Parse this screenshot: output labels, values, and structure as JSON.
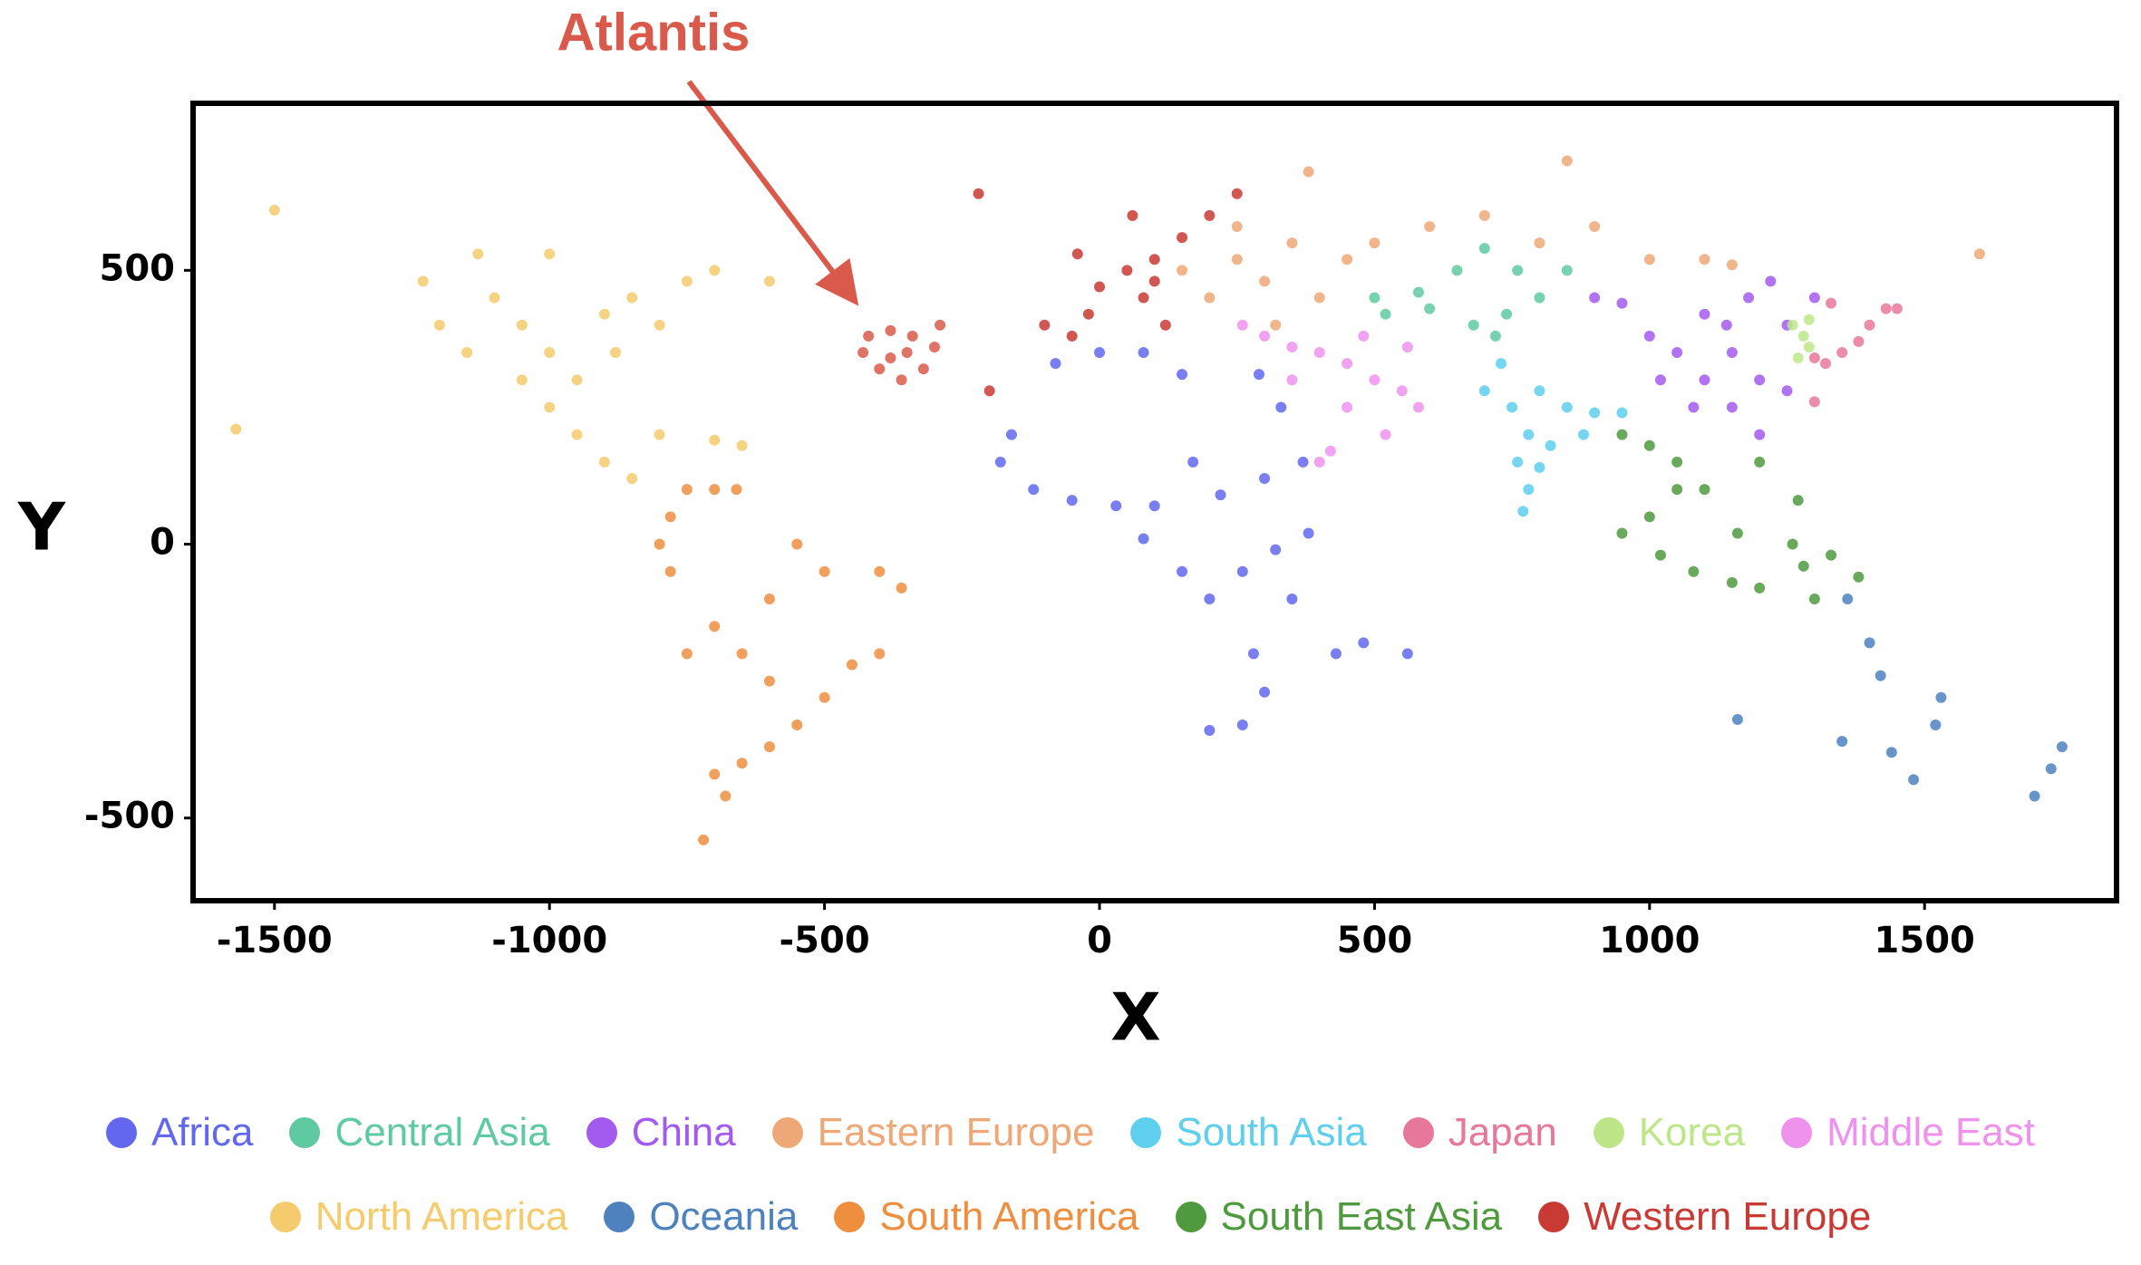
{
  "chart_data": {
    "type": "scatter",
    "xlabel": "X",
    "ylabel": "Y",
    "xlim": [
      -1648,
      1849
    ],
    "ylim": [
      -651,
      805
    ],
    "xticks": [
      -1500,
      -1000,
      -500,
      0,
      500,
      1000,
      1500
    ],
    "yticks": [
      -500,
      0,
      500
    ],
    "grid": false,
    "legend": "bottom",
    "series": [
      {
        "name": "Africa",
        "color": "#6167ee",
        "x": [
          -80,
          0,
          80,
          150,
          -160,
          -120,
          -50,
          30,
          100,
          170,
          220,
          300,
          370,
          150,
          200,
          260,
          320,
          380,
          350,
          280,
          300,
          260,
          200,
          430,
          480,
          560,
          290,
          330,
          -180,
          80
        ],
        "y": [
          330,
          350,
          350,
          310,
          200,
          100,
          80,
          70,
          70,
          150,
          90,
          120,
          150,
          -50,
          -100,
          -50,
          -10,
          20,
          -100,
          -200,
          -270,
          -330,
          -340,
          -200,
          -180,
          -200,
          310,
          250,
          150,
          10
        ]
      },
      {
        "name": "Central Asia",
        "color": "#5fcaa2",
        "x": [
          500,
          520,
          600,
          680,
          720,
          760,
          700,
          800,
          650,
          580,
          740,
          850
        ],
        "y": [
          450,
          420,
          430,
          400,
          380,
          500,
          540,
          450,
          500,
          460,
          420,
          500
        ]
      },
      {
        "name": "China",
        "color": "#a35bef",
        "x": [
          950,
          1000,
          1050,
          1100,
          1150,
          1200,
          1250,
          1220,
          1180,
          1100,
          1080,
          1150,
          1020,
          1200,
          1250,
          900,
          1300,
          1140
        ],
        "y": [
          440,
          380,
          350,
          300,
          250,
          300,
          400,
          480,
          450,
          420,
          250,
          350,
          300,
          200,
          280,
          450,
          450,
          400
        ]
      },
      {
        "name": "Eastern Europe",
        "color": "#eea877",
        "x": [
          150,
          200,
          250,
          300,
          350,
          400,
          450,
          500,
          600,
          700,
          800,
          900,
          1000,
          1100,
          320,
          250,
          380,
          850,
          1600,
          1150
        ],
        "y": [
          500,
          450,
          520,
          480,
          550,
          450,
          520,
          550,
          580,
          600,
          550,
          580,
          520,
          520,
          400,
          580,
          680,
          700,
          530,
          510
        ]
      },
      {
        "name": "South Asia",
        "color": "#5ecfee",
        "x": [
          700,
          750,
          800,
          850,
          900,
          780,
          760,
          780,
          820,
          950,
          880,
          730,
          770,
          800
        ],
        "y": [
          280,
          250,
          280,
          250,
          240,
          200,
          150,
          100,
          180,
          240,
          200,
          330,
          60,
          140
        ]
      },
      {
        "name": "Japan",
        "color": "#e8789a",
        "x": [
          1320,
          1350,
          1380,
          1400,
          1430,
          1450,
          1300,
          1300,
          1330
        ],
        "y": [
          330,
          350,
          370,
          400,
          430,
          430,
          340,
          260,
          440
        ]
      },
      {
        "name": "Korea",
        "color": "#bde689",
        "x": [
          1260,
          1280,
          1290,
          1270,
          1290
        ],
        "y": [
          400,
          380,
          360,
          340,
          410
        ]
      },
      {
        "name": "Middle East",
        "color": "#ee92ee",
        "x": [
          260,
          300,
          350,
          400,
          450,
          500,
          550,
          580,
          350,
          450,
          400,
          520,
          480,
          560,
          420
        ],
        "y": [
          400,
          380,
          360,
          350,
          330,
          300,
          280,
          250,
          300,
          250,
          150,
          200,
          380,
          360,
          170
        ]
      },
      {
        "name": "North America",
        "color": "#f5cb6d",
        "x": [
          -1230,
          -1200,
          -1150,
          -1100,
          -1050,
          -1000,
          -950,
          -900,
          -850,
          -800,
          -750,
          -700,
          -1000,
          -950,
          -900,
          -850,
          -800,
          -700,
          -650,
          -1130,
          -1000,
          -1500,
          -1570,
          -600,
          -1050,
          -880
        ],
        "y": [
          480,
          400,
          350,
          450,
          400,
          350,
          300,
          420,
          450,
          400,
          480,
          500,
          250,
          200,
          150,
          120,
          200,
          190,
          180,
          530,
          530,
          610,
          210,
          480,
          300,
          350
        ]
      },
      {
        "name": "Oceania",
        "color": "#4e82bf",
        "x": [
          1160,
          1360,
          1400,
          1420,
          1530,
          1350,
          1440,
          1480,
          1700,
          1750,
          1730,
          1520
        ],
        "y": [
          -320,
          -100,
          -180,
          -240,
          -280,
          -360,
          -380,
          -430,
          -460,
          -370,
          -410,
          -330
        ]
      },
      {
        "name": "South America",
        "color": "#ef8e3f",
        "x": [
          -780,
          -750,
          -700,
          -660,
          -800,
          -780,
          -700,
          -650,
          -600,
          -500,
          -400,
          -360,
          -400,
          -450,
          -500,
          -550,
          -600,
          -650,
          -700,
          -720,
          -680,
          -600,
          -550,
          -750
        ],
        "y": [
          50,
          100,
          100,
          100,
          0,
          -50,
          -150,
          -200,
          -100,
          -50,
          -50,
          -80,
          -200,
          -220,
          -280,
          -330,
          -370,
          -400,
          -420,
          -540,
          -460,
          -250,
          0,
          -200
        ]
      },
      {
        "name": "South East Asia",
        "color": "#4f9a3e",
        "x": [
          950,
          1000,
          1050,
          1050,
          1100,
          1000,
          950,
          1020,
          1080,
          1150,
          1200,
          1260,
          1270,
          1200,
          1280,
          1330,
          1300,
          1380,
          1160
        ],
        "y": [
          200,
          180,
          150,
          100,
          100,
          50,
          20,
          -20,
          -50,
          -70,
          -80,
          0,
          80,
          150,
          -40,
          -20,
          -100,
          -60,
          20
        ]
      },
      {
        "name": "Western Europe",
        "color": "#c93a35",
        "x": [
          -40,
          0,
          50,
          100,
          150,
          80,
          120,
          -100,
          -50,
          60,
          200,
          -200,
          -220,
          250,
          -20,
          100
        ],
        "y": [
          530,
          470,
          500,
          520,
          560,
          450,
          400,
          400,
          380,
          600,
          600,
          280,
          640,
          640,
          420,
          480
        ]
      },
      {
        "name": "Atlantis",
        "color": "#d95a4a",
        "legend": false,
        "x": [
          -420,
          -380,
          -340,
          -300,
          -320,
          -360,
          -400,
          -430,
          -350,
          -290,
          -380
        ],
        "y": [
          380,
          390,
          380,
          360,
          320,
          300,
          320,
          350,
          350,
          400,
          340
        ]
      }
    ]
  }
}
